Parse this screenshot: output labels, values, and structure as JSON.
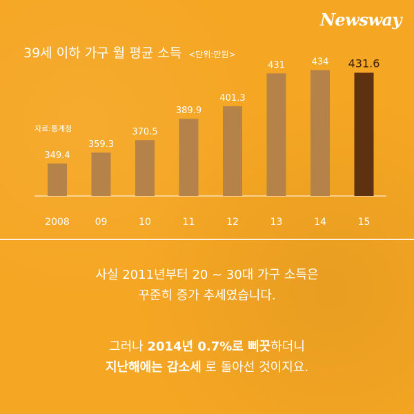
{
  "brand": {
    "logo": "Newsway"
  },
  "chart_data": {
    "type": "bar",
    "title": "39세 이하 가구 월 평균 소득",
    "unit": "<단위:만원>",
    "source": "자료:통계청",
    "categories": [
      "2008",
      "09",
      "10",
      "11",
      "12",
      "13",
      "14",
      "15"
    ],
    "values": [
      349.4,
      359.3,
      370.5,
      389.9,
      401.3,
      431,
      434,
      431.6
    ],
    "value_labels": [
      "349.4",
      "359.3",
      "370.5",
      "389.9",
      "401.3",
      "431",
      "434",
      "431.6"
    ],
    "colors": [
      "#b5834a",
      "#b5834a",
      "#b5834a",
      "#b5834a",
      "#b5834a",
      "#b5834a",
      "#b5834a",
      "#5e3210"
    ],
    "grid": false
  },
  "caption": {
    "p1_line1": "사실 2011년부터 20 ~ 30대 가구 소득은",
    "p1_line2": "꾸준히 증가 추세였습니다.",
    "p2_line1_a": "그러나 ",
    "p2_line1_b": "2014년 0.7%로 삐끗",
    "p2_line1_c": "하더니",
    "p2_line2_a": "지난해에는 감소세",
    "p2_line2_b": " 로 돌아선 것이지요."
  }
}
